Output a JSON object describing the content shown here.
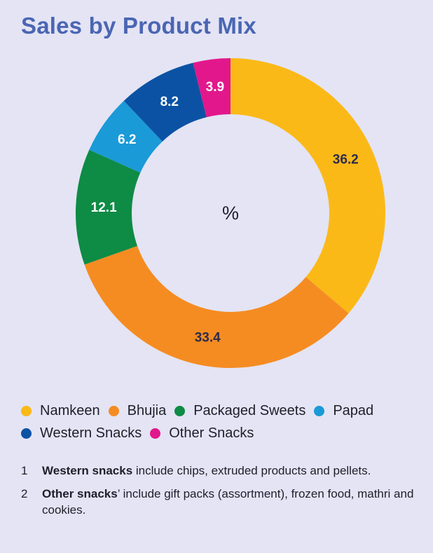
{
  "title": "Sales by Product Mix",
  "chart_data": {
    "type": "pie",
    "center_label": "%",
    "categories": [
      "Namkeen",
      "Bhujia",
      "Packaged Sweets",
      "Papad",
      "Western Snacks",
      "Other Snacks"
    ],
    "values": [
      36.2,
      33.4,
      12.1,
      6.2,
      8.2,
      3.9
    ],
    "value_labels": [
      "36.2",
      "33.4",
      "12.1",
      "6.2",
      "8.2",
      "3.9"
    ],
    "colors": [
      "#fbb918",
      "#f58c22",
      "#0e8b45",
      "#1a9ad7",
      "#0b52a4",
      "#e2178c"
    ],
    "legend_position": "bottom"
  },
  "notes": [
    {
      "num": "1",
      "bold": "Western snacks",
      "rest": " include chips, extruded products and pellets."
    },
    {
      "num": "2",
      "bold": "Other snacks",
      "rest": "’ include gift packs (assortment), frozen food, mathri and cookies."
    }
  ]
}
